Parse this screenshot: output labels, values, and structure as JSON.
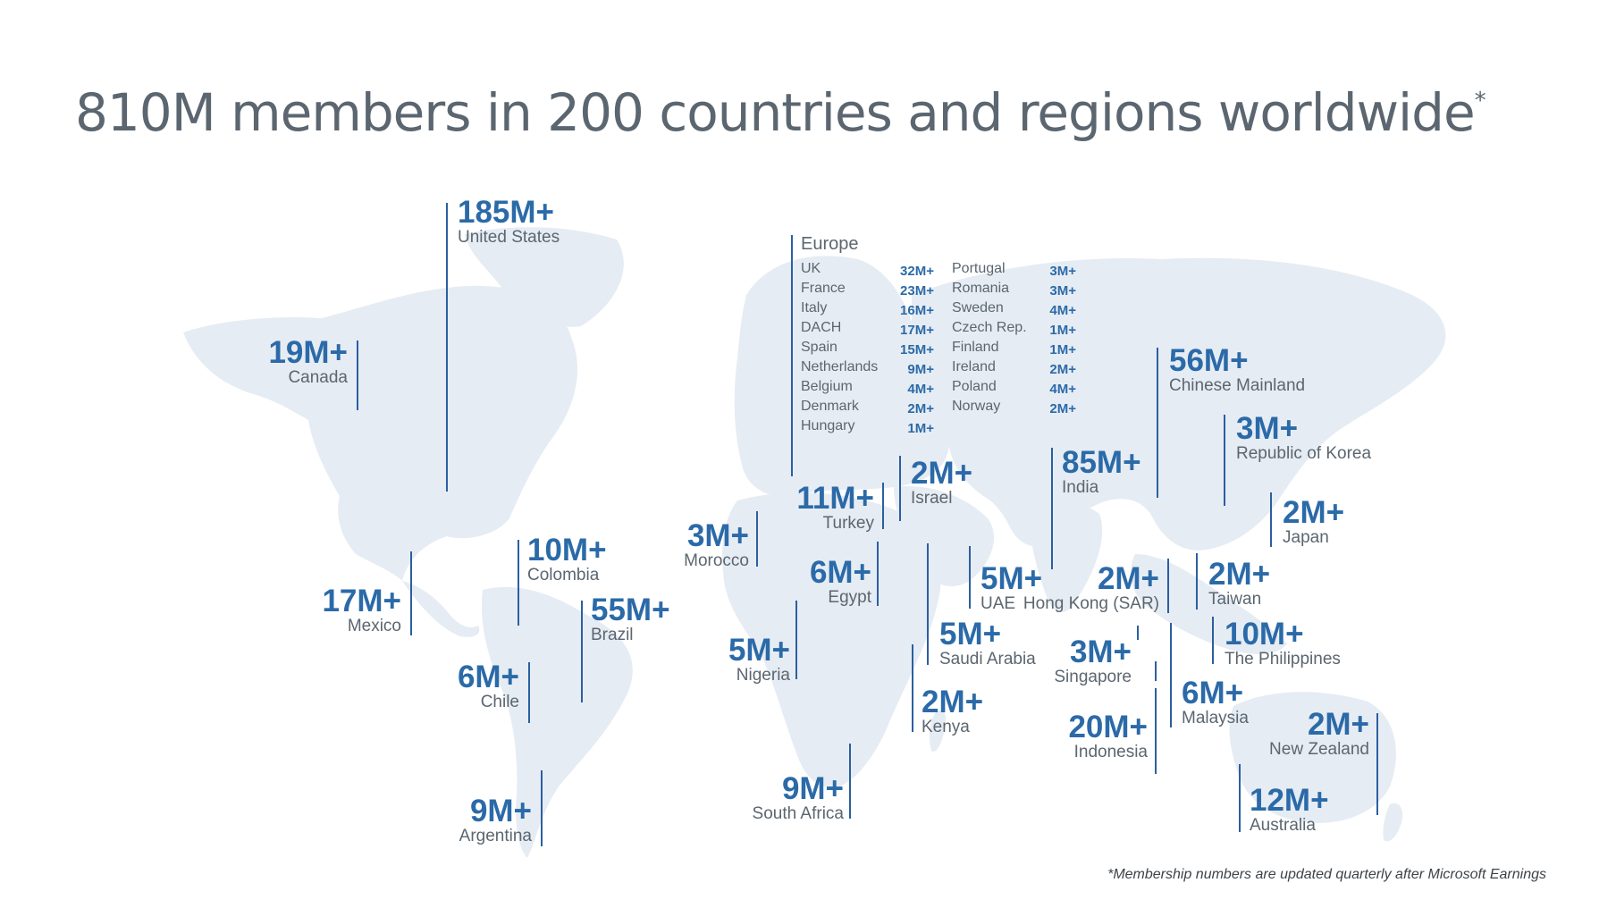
{
  "title": "810M members in 200 countries and regions worldwide",
  "title_mark": "*",
  "footnote": "*Membership numbers are updated quarterly after Microsoft Earnings",
  "colors": {
    "accent": "#2b6aa8",
    "line": "#2b5fa0",
    "land": "#e6ecf3",
    "text": "#5b6670"
  },
  "regions": {
    "united_states": {
      "value": "185M+",
      "name": "United States"
    },
    "canada": {
      "value": "19M+",
      "name": "Canada"
    },
    "mexico": {
      "value": "17M+",
      "name": "Mexico"
    },
    "colombia": {
      "value": "10M+",
      "name": "Colombia"
    },
    "brazil": {
      "value": "55M+",
      "name": "Brazil"
    },
    "chile": {
      "value": "6M+",
      "name": "Chile"
    },
    "argentina": {
      "value": "9M+",
      "name": "Argentina"
    },
    "morocco": {
      "value": "3M+",
      "name": "Morocco"
    },
    "turkey": {
      "value": "11M+",
      "name": "Turkey"
    },
    "israel": {
      "value": "2M+",
      "name": "Israel"
    },
    "egypt": {
      "value": "6M+",
      "name": "Egypt"
    },
    "nigeria": {
      "value": "5M+",
      "name": "Nigeria"
    },
    "saudi_arabia": {
      "value": "5M+",
      "name": "Saudi Arabia"
    },
    "uae": {
      "value": "5M+",
      "name": "UAE"
    },
    "kenya": {
      "value": "2M+",
      "name": "Kenya"
    },
    "south_africa": {
      "value": "9M+",
      "name": "South Africa"
    },
    "india": {
      "value": "85M+",
      "name": "India"
    },
    "chinese_mainland": {
      "value": "56M+",
      "name": "Chinese Mainland"
    },
    "korea": {
      "value": "3M+",
      "name": "Republic of Korea"
    },
    "japan": {
      "value": "2M+",
      "name": "Japan"
    },
    "hong_kong": {
      "value": "2M+",
      "name": "Hong Kong (SAR)"
    },
    "taiwan": {
      "value": "2M+",
      "name": "Taiwan"
    },
    "philippines": {
      "value": "10M+",
      "name": "The Philippines"
    },
    "singapore": {
      "value": "3M+",
      "name": "Singapore"
    },
    "malaysia": {
      "value": "6M+",
      "name": "Malaysia"
    },
    "indonesia": {
      "value": "20M+",
      "name": "Indonesia"
    },
    "new_zealand": {
      "value": "2M+",
      "name": "New Zealand"
    },
    "australia": {
      "value": "12M+",
      "name": "Australia"
    }
  },
  "europe": {
    "heading": "Europe",
    "col1": [
      {
        "name": "UK",
        "value": "32M+"
      },
      {
        "name": "France",
        "value": "23M+"
      },
      {
        "name": "Italy",
        "value": "16M+"
      },
      {
        "name": "DACH",
        "value": "17M+"
      },
      {
        "name": "Spain",
        "value": "15M+"
      },
      {
        "name": "Netherlands",
        "value": "9M+"
      },
      {
        "name": "Belgium",
        "value": "4M+"
      },
      {
        "name": "Denmark",
        "value": "2M+"
      },
      {
        "name": "Hungary",
        "value": "1M+"
      }
    ],
    "col2": [
      {
        "name": "Portugal",
        "value": "3M+"
      },
      {
        "name": "Romania",
        "value": "3M+"
      },
      {
        "name": "Sweden",
        "value": "4M+"
      },
      {
        "name": "Czech Rep.",
        "value": "1M+"
      },
      {
        "name": "Finland",
        "value": "1M+"
      },
      {
        "name": "Ireland",
        "value": "2M+"
      },
      {
        "name": "Poland",
        "value": "4M+"
      },
      {
        "name": "Norway",
        "value": "2M+"
      }
    ]
  }
}
